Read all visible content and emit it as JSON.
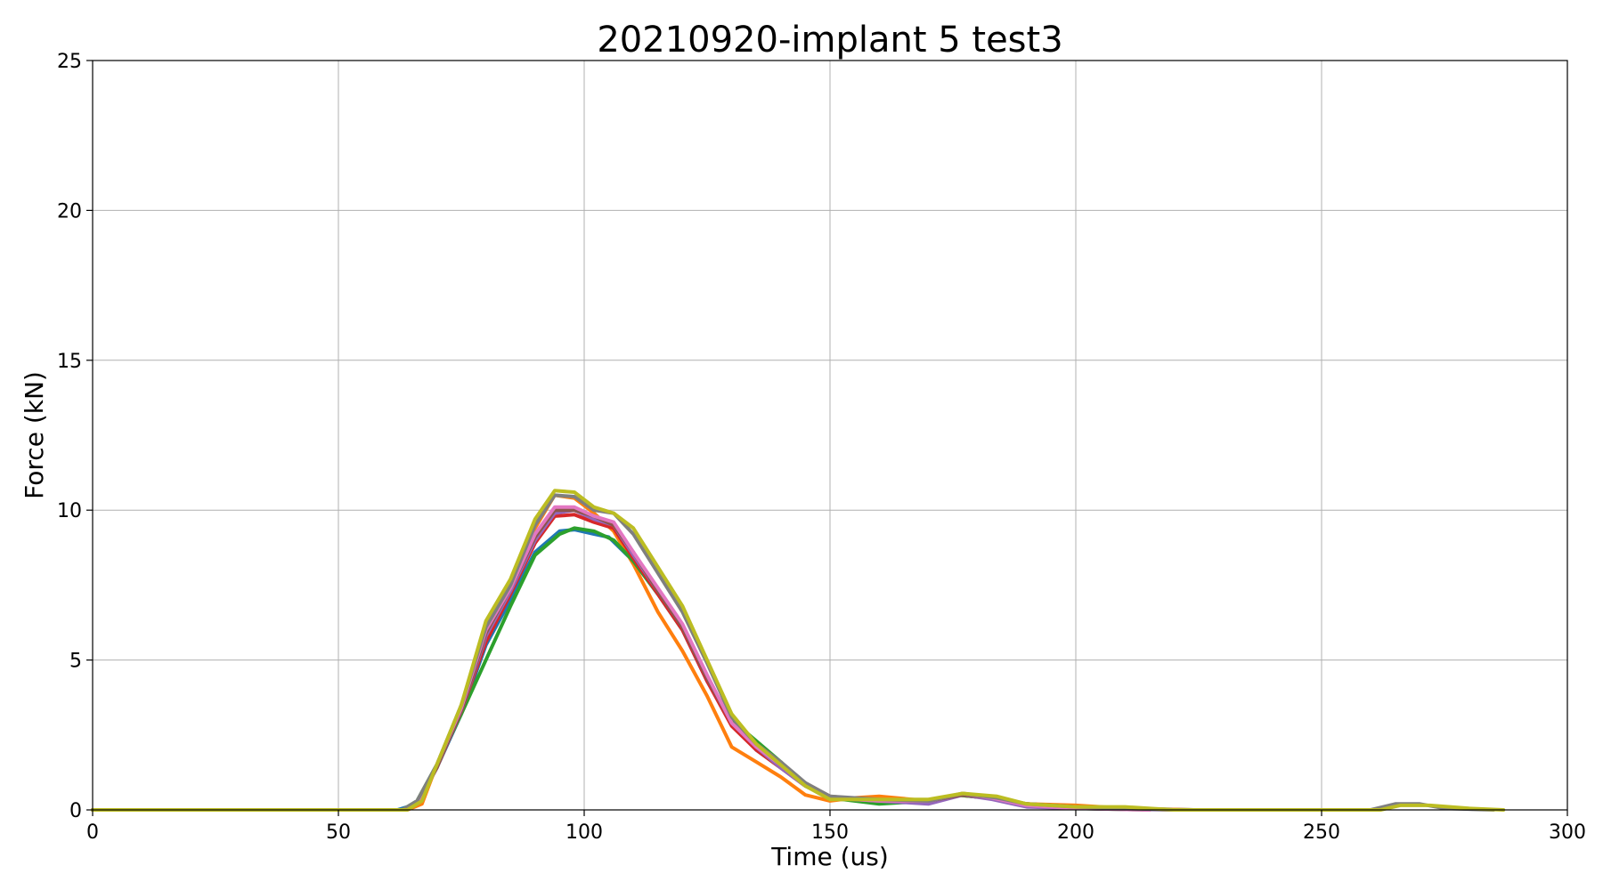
{
  "chart_data": {
    "type": "line",
    "title": "20210920-implant 5 test3",
    "xlabel": "Time (us)",
    "ylabel": "Force (kN)",
    "xlim": [
      0,
      300
    ],
    "ylim": [
      0,
      25
    ],
    "xticks": [
      "0",
      "50",
      "100",
      "150",
      "200",
      "250",
      "300"
    ],
    "yticks": [
      "0",
      "5",
      "10",
      "15",
      "20",
      "25"
    ],
    "grid": true,
    "series": [
      {
        "color": "#1f77b4",
        "points": [
          [
            0,
            0
          ],
          [
            62,
            0
          ],
          [
            66,
            0.2
          ],
          [
            70,
            1.4
          ],
          [
            75,
            3.2
          ],
          [
            80,
            5.5
          ],
          [
            85,
            7.0
          ],
          [
            90,
            8.6
          ],
          [
            95,
            9.3
          ],
          [
            98,
            9.35
          ],
          [
            102,
            9.2
          ],
          [
            105,
            9.1
          ],
          [
            110,
            8.3
          ],
          [
            115,
            7.2
          ],
          [
            120,
            6.0
          ],
          [
            125,
            4.3
          ],
          [
            130,
            2.9
          ],
          [
            135,
            2.0
          ],
          [
            140,
            1.4
          ],
          [
            145,
            0.8
          ],
          [
            150,
            0.4
          ],
          [
            160,
            0.3
          ],
          [
            170,
            0.3
          ],
          [
            176,
            0.5
          ],
          [
            182,
            0.4
          ],
          [
            190,
            0.15
          ],
          [
            200,
            0.05
          ],
          [
            210,
            0.05
          ],
          [
            224,
            0
          ]
        ]
      },
      {
        "color": "#ff7f0e",
        "points": [
          [
            0,
            0
          ],
          [
            64,
            0
          ],
          [
            67,
            0.2
          ],
          [
            70,
            1.5
          ],
          [
            75,
            3.4
          ],
          [
            80,
            6.2
          ],
          [
            85,
            7.6
          ],
          [
            90,
            9.4
          ],
          [
            94,
            10.5
          ],
          [
            98,
            10.4
          ],
          [
            102,
            9.9
          ],
          [
            106,
            9.3
          ],
          [
            110,
            8.2
          ],
          [
            115,
            6.6
          ],
          [
            120,
            5.3
          ],
          [
            125,
            3.8
          ],
          [
            130,
            2.1
          ],
          [
            135,
            1.6
          ],
          [
            140,
            1.1
          ],
          [
            145,
            0.5
          ],
          [
            150,
            0.3
          ],
          [
            155,
            0.4
          ],
          [
            160,
            0.45
          ],
          [
            170,
            0.3
          ],
          [
            176,
            0.5
          ],
          [
            182,
            0.4
          ],
          [
            190,
            0.2
          ],
          [
            200,
            0.15
          ],
          [
            210,
            0.05
          ],
          [
            224,
            0
          ]
        ]
      },
      {
        "color": "#2ca02c",
        "points": [
          [
            0,
            0
          ],
          [
            63,
            0
          ],
          [
            66,
            0.3
          ],
          [
            70,
            1.5
          ],
          [
            75,
            3.2
          ],
          [
            80,
            5.0
          ],
          [
            85,
            6.8
          ],
          [
            90,
            8.5
          ],
          [
            95,
            9.2
          ],
          [
            98,
            9.4
          ],
          [
            102,
            9.3
          ],
          [
            106,
            9.0
          ],
          [
            110,
            8.3
          ],
          [
            115,
            7.2
          ],
          [
            120,
            6.0
          ],
          [
            125,
            4.4
          ],
          [
            130,
            3.0
          ],
          [
            135,
            2.3
          ],
          [
            140,
            1.6
          ],
          [
            145,
            0.8
          ],
          [
            150,
            0.4
          ],
          [
            160,
            0.2
          ],
          [
            170,
            0.3
          ],
          [
            176,
            0.5
          ],
          [
            182,
            0.4
          ],
          [
            190,
            0.15
          ],
          [
            200,
            0.05
          ],
          [
            215,
            0
          ]
        ]
      },
      {
        "color": "#d62728",
        "points": [
          [
            0,
            0
          ],
          [
            63,
            0
          ],
          [
            66,
            0.2
          ],
          [
            70,
            1.4
          ],
          [
            75,
            3.3
          ],
          [
            80,
            5.6
          ],
          [
            85,
            7.2
          ],
          [
            90,
            8.9
          ],
          [
            94,
            9.8
          ],
          [
            98,
            9.85
          ],
          [
            102,
            9.6
          ],
          [
            106,
            9.4
          ],
          [
            110,
            8.4
          ],
          [
            115,
            7.2
          ],
          [
            120,
            6.0
          ],
          [
            125,
            4.3
          ],
          [
            130,
            2.8
          ],
          [
            135,
            2.0
          ],
          [
            140,
            1.4
          ],
          [
            145,
            0.8
          ],
          [
            150,
            0.4
          ],
          [
            160,
            0.3
          ],
          [
            170,
            0.3
          ],
          [
            177,
            0.5
          ],
          [
            183,
            0.4
          ],
          [
            190,
            0.2
          ],
          [
            200,
            0.1
          ],
          [
            210,
            0.05
          ],
          [
            220,
            0
          ]
        ]
      },
      {
        "color": "#9467bd",
        "points": [
          [
            0,
            0
          ],
          [
            63,
            0
          ],
          [
            66,
            0.2
          ],
          [
            70,
            1.4
          ],
          [
            75,
            3.3
          ],
          [
            80,
            5.8
          ],
          [
            85,
            7.3
          ],
          [
            90,
            9.0
          ],
          [
            94,
            9.9
          ],
          [
            98,
            10.0
          ],
          [
            102,
            9.7
          ],
          [
            106,
            9.5
          ],
          [
            110,
            8.5
          ],
          [
            115,
            7.3
          ],
          [
            120,
            6.1
          ],
          [
            125,
            4.4
          ],
          [
            130,
            2.9
          ],
          [
            135,
            2.1
          ],
          [
            140,
            1.4
          ],
          [
            145,
            0.8
          ],
          [
            150,
            0.4
          ],
          [
            160,
            0.3
          ],
          [
            170,
            0.2
          ],
          [
            177,
            0.5
          ],
          [
            183,
            0.35
          ],
          [
            190,
            0.1
          ],
          [
            200,
            0.05
          ],
          [
            220,
            0
          ]
        ]
      },
      {
        "color": "#8c564b",
        "points": [
          [
            0,
            0
          ],
          [
            63,
            0
          ],
          [
            66,
            0.2
          ],
          [
            70,
            1.4
          ],
          [
            75,
            3.3
          ],
          [
            80,
            5.9
          ],
          [
            85,
            7.4
          ],
          [
            90,
            9.1
          ],
          [
            94,
            10.0
          ],
          [
            98,
            10.0
          ],
          [
            102,
            9.8
          ],
          [
            106,
            9.5
          ],
          [
            110,
            8.6
          ],
          [
            115,
            7.3
          ],
          [
            120,
            6.1
          ],
          [
            125,
            4.4
          ],
          [
            130,
            2.9
          ],
          [
            135,
            2.1
          ],
          [
            140,
            1.5
          ],
          [
            145,
            0.9
          ],
          [
            150,
            0.45
          ],
          [
            160,
            0.3
          ],
          [
            170,
            0.3
          ],
          [
            177,
            0.5
          ],
          [
            184,
            0.4
          ],
          [
            190,
            0.2
          ],
          [
            200,
            0.1
          ],
          [
            215,
            0
          ]
        ]
      },
      {
        "color": "#e377c2",
        "points": [
          [
            0,
            0
          ],
          [
            63,
            0
          ],
          [
            66,
            0.2
          ],
          [
            70,
            1.5
          ],
          [
            75,
            3.4
          ],
          [
            80,
            6.0
          ],
          [
            85,
            7.4
          ],
          [
            90,
            9.2
          ],
          [
            94,
            10.1
          ],
          [
            98,
            10.1
          ],
          [
            102,
            9.8
          ],
          [
            106,
            9.6
          ],
          [
            110,
            8.6
          ],
          [
            115,
            7.4
          ],
          [
            120,
            6.2
          ],
          [
            125,
            4.5
          ],
          [
            130,
            2.9
          ],
          [
            135,
            2.1
          ],
          [
            140,
            1.5
          ],
          [
            145,
            0.8
          ],
          [
            150,
            0.4
          ],
          [
            160,
            0.3
          ],
          [
            170,
            0.3
          ],
          [
            177,
            0.55
          ],
          [
            183,
            0.4
          ],
          [
            190,
            0.15
          ],
          [
            200,
            0.05
          ],
          [
            215,
            0
          ]
        ]
      },
      {
        "color": "#7f7f7f",
        "points": [
          [
            0,
            0
          ],
          [
            63,
            0
          ],
          [
            66,
            0.3
          ],
          [
            70,
            1.5
          ],
          [
            75,
            3.5
          ],
          [
            80,
            6.1
          ],
          [
            85,
            7.5
          ],
          [
            90,
            9.5
          ],
          [
            94,
            10.5
          ],
          [
            98,
            10.45
          ],
          [
            102,
            10.0
          ],
          [
            106,
            9.9
          ],
          [
            110,
            9.2
          ],
          [
            115,
            7.9
          ],
          [
            120,
            6.6
          ],
          [
            125,
            4.9
          ],
          [
            130,
            3.1
          ],
          [
            135,
            2.2
          ],
          [
            140,
            1.6
          ],
          [
            145,
            0.9
          ],
          [
            150,
            0.45
          ],
          [
            160,
            0.35
          ],
          [
            170,
            0.3
          ],
          [
            177,
            0.55
          ],
          [
            184,
            0.4
          ],
          [
            190,
            0.2
          ],
          [
            200,
            0.1
          ],
          [
            210,
            0.05
          ],
          [
            220,
            0
          ],
          [
            260,
            0
          ],
          [
            265,
            0.2
          ],
          [
            270,
            0.2
          ],
          [
            275,
            0.05
          ],
          [
            285,
            0
          ]
        ]
      },
      {
        "color": "#bcbd22",
        "points": [
          [
            0,
            0
          ],
          [
            64,
            0
          ],
          [
            67,
            0.3
          ],
          [
            70,
            1.5
          ],
          [
            75,
            3.5
          ],
          [
            80,
            6.3
          ],
          [
            85,
            7.7
          ],
          [
            90,
            9.7
          ],
          [
            94,
            10.65
          ],
          [
            98,
            10.6
          ],
          [
            102,
            10.1
          ],
          [
            106,
            9.9
          ],
          [
            110,
            9.4
          ],
          [
            115,
            8.1
          ],
          [
            120,
            6.8
          ],
          [
            125,
            5.0
          ],
          [
            130,
            3.2
          ],
          [
            135,
            2.2
          ],
          [
            140,
            1.5
          ],
          [
            145,
            0.8
          ],
          [
            150,
            0.35
          ],
          [
            160,
            0.35
          ],
          [
            170,
            0.35
          ],
          [
            177,
            0.55
          ],
          [
            184,
            0.45
          ],
          [
            190,
            0.2
          ],
          [
            200,
            0.1
          ],
          [
            210,
            0.1
          ],
          [
            220,
            0
          ],
          [
            262,
            0
          ],
          [
            266,
            0.15
          ],
          [
            272,
            0.15
          ],
          [
            280,
            0.05
          ],
          [
            287,
            0
          ]
        ]
      }
    ]
  }
}
